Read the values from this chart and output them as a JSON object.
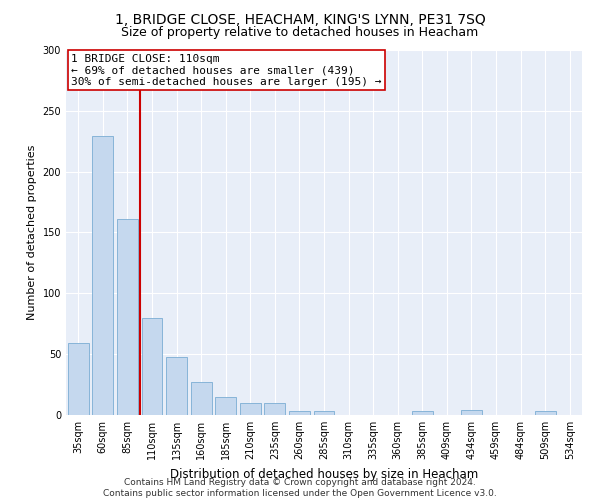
{
  "title": "1, BRIDGE CLOSE, HEACHAM, KING'S LYNN, PE31 7SQ",
  "subtitle": "Size of property relative to detached houses in Heacham",
  "xlabel": "Distribution of detached houses by size in Heacham",
  "ylabel": "Number of detached properties",
  "categories": [
    "35sqm",
    "60sqm",
    "85sqm",
    "110sqm",
    "135sqm",
    "160sqm",
    "185sqm",
    "210sqm",
    "235sqm",
    "260sqm",
    "285sqm",
    "310sqm",
    "335sqm",
    "360sqm",
    "385sqm",
    "409sqm",
    "434sqm",
    "459sqm",
    "484sqm",
    "509sqm",
    "534sqm"
  ],
  "values": [
    59,
    229,
    161,
    80,
    48,
    27,
    15,
    10,
    10,
    3,
    3,
    0,
    0,
    0,
    3,
    0,
    4,
    0,
    0,
    3,
    0
  ],
  "bar_color": "#c5d8ee",
  "bar_edge_color": "#7aadd4",
  "vline_x": 2.5,
  "vline_color": "#cc0000",
  "annotation_text": "1 BRIDGE CLOSE: 110sqm\n← 69% of detached houses are smaller (439)\n30% of semi-detached houses are larger (195) →",
  "annotation_box_color": "#ffffff",
  "annotation_box_edge": "#cc0000",
  "ylim": [
    0,
    300
  ],
  "yticks": [
    0,
    50,
    100,
    150,
    200,
    250,
    300
  ],
  "background_color": "#e8eef8",
  "grid_color": "#ffffff",
  "footer": "Contains HM Land Registry data © Crown copyright and database right 2024.\nContains public sector information licensed under the Open Government Licence v3.0.",
  "title_fontsize": 10,
  "subtitle_fontsize": 9,
  "xlabel_fontsize": 8.5,
  "ylabel_fontsize": 8,
  "tick_fontsize": 7,
  "footer_fontsize": 6.5,
  "annotation_fontsize": 8
}
